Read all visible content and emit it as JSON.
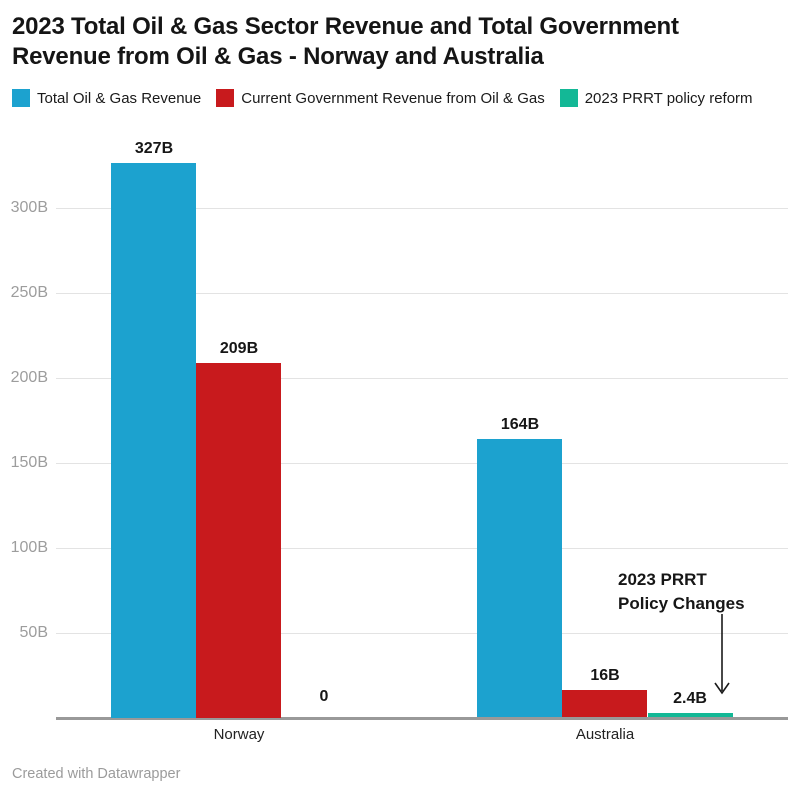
{
  "chart_data": {
    "type": "bar",
    "title": "2023 Total Oil & Gas Sector Revenue and Total Government Revenue from Oil & Gas - Norway and Australia",
    "title_lines": [
      "2023 Total Oil & Gas Sector Revenue and Total Government",
      "Revenue from Oil & Gas - Norway and Australia"
    ],
    "categories": [
      "Norway",
      "Australia"
    ],
    "series": [
      {
        "name": "Total Oil & Gas Revenue",
        "color": "#1ca2cf",
        "values": [
          327,
          164
        ],
        "value_labels": [
          "327B",
          "164B"
        ]
      },
      {
        "name": "Current Government Revenue from Oil & Gas",
        "color": "#c81a1d",
        "values": [
          209,
          16
        ],
        "value_labels": [
          "209B",
          "16B"
        ]
      },
      {
        "name": "2023 PRRT policy reform",
        "color": "#13b896",
        "values": [
          0,
          2.4
        ],
        "value_labels": [
          "0",
          "2.4B"
        ]
      }
    ],
    "unit": "B",
    "ylim": [
      0,
      345
    ],
    "yticks": [
      50,
      100,
      150,
      200,
      250,
      300
    ],
    "ytick_labels": [
      "50B",
      "100B",
      "150B",
      "200B",
      "250B",
      "300B"
    ],
    "grid": true,
    "legend_position": "top",
    "annotation": {
      "line1": "2023 PRRT",
      "line2": "Policy Changes",
      "points_to": "2023 PRRT policy reform bar for Australia (2.4B)"
    }
  },
  "footer": {
    "credit": "Created with Datawrapper"
  }
}
